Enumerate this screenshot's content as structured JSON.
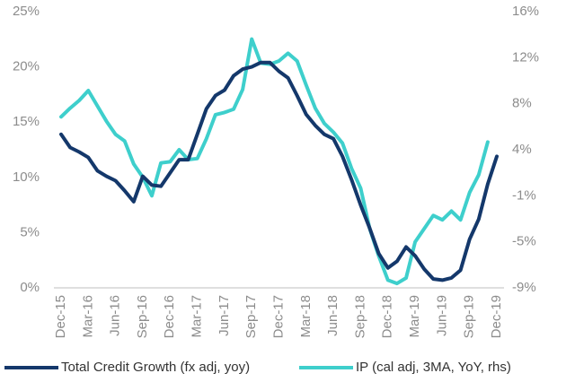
{
  "chart_data": {
    "type": "line",
    "categories": [
      "Dec-15",
      null,
      null,
      "Mar-16",
      null,
      null,
      "Jun-16",
      null,
      null,
      "Sep-16",
      null,
      null,
      "Dec-16",
      null,
      null,
      "Mar-17",
      null,
      null,
      "Jun-17",
      null,
      null,
      "Sep-17",
      null,
      null,
      "Dec-17",
      null,
      null,
      "Mar-18",
      null,
      null,
      "Jun-18",
      null,
      null,
      "Sep-18",
      null,
      null,
      "Dec-18",
      null,
      null,
      "Mar-19",
      null,
      null,
      "Jun-19",
      null,
      null,
      "Sep-19",
      null,
      null,
      "Dec-19"
    ],
    "series": [
      {
        "name": "Total Credit Growth (fx adj, yoy)",
        "color": "#14386b",
        "values": [
          13.9,
          12.7,
          12.3,
          11.8,
          10.6,
          10.1,
          9.7,
          8.8,
          7.8,
          10.1,
          9.3,
          9.2,
          10.4,
          11.6,
          11.6,
          13.9,
          16.2,
          17.4,
          17.9,
          19.2,
          19.8,
          20.0,
          20.4,
          20.4,
          19.6,
          19.0,
          17.4,
          15.7,
          14.7,
          13.9,
          13.5,
          11.9,
          9.8,
          7.5,
          5.4,
          3.1,
          1.8,
          2.4,
          3.7,
          2.9,
          1.7,
          0.8,
          0.7,
          0.9,
          1.6,
          4.4,
          6.2,
          9.4,
          11.9
        ]
      },
      {
        "name": "IP (cal adj, 3MA, YoY, rhs)",
        "color": "#3ecfcc",
        "axis": "y2",
        "values": [
          6.6,
          7.4,
          8.1,
          9.0,
          7.6,
          6.2,
          5.0,
          4.4,
          2.3,
          1.1,
          -0.6,
          2.4,
          2.5,
          3.6,
          2.7,
          2.8,
          4.6,
          6.8,
          7.0,
          7.3,
          9.1,
          13.7,
          11.5,
          11.4,
          11.7,
          12.4,
          11.7,
          9.5,
          7.4,
          6.0,
          5.2,
          4.2,
          1.9,
          0.1,
          -3.6,
          -6.1,
          -8.3,
          -8.6,
          -8.1,
          -4.8,
          -3.6,
          -2.4,
          -2.8,
          -2.0,
          -2.8,
          -0.3,
          1.3,
          4.3,
          null
        ]
      }
    ],
    "ylim": [
      0,
      25
    ],
    "yticks": [
      {
        "value": 0,
        "label": "0%"
      },
      {
        "value": 5,
        "label": "5%"
      },
      {
        "value": 10,
        "label": "10%"
      },
      {
        "value": 15,
        "label": "15%"
      },
      {
        "value": 20,
        "label": "20%"
      },
      {
        "value": 25,
        "label": "25%"
      }
    ],
    "y2lim": [
      -9,
      16.2
    ],
    "y2ticks": [
      {
        "value": -9,
        "label": "-9%"
      },
      {
        "value": -4.8,
        "label": "-5%"
      },
      {
        "value": -0.6,
        "label": "-1%"
      },
      {
        "value": 3.6,
        "label": "4%"
      },
      {
        "value": 7.8,
        "label": "8%"
      },
      {
        "value": 12,
        "label": "12%"
      },
      {
        "value": 16.2,
        "label": "16%"
      }
    ],
    "grid": false,
    "legend": "bottom"
  }
}
